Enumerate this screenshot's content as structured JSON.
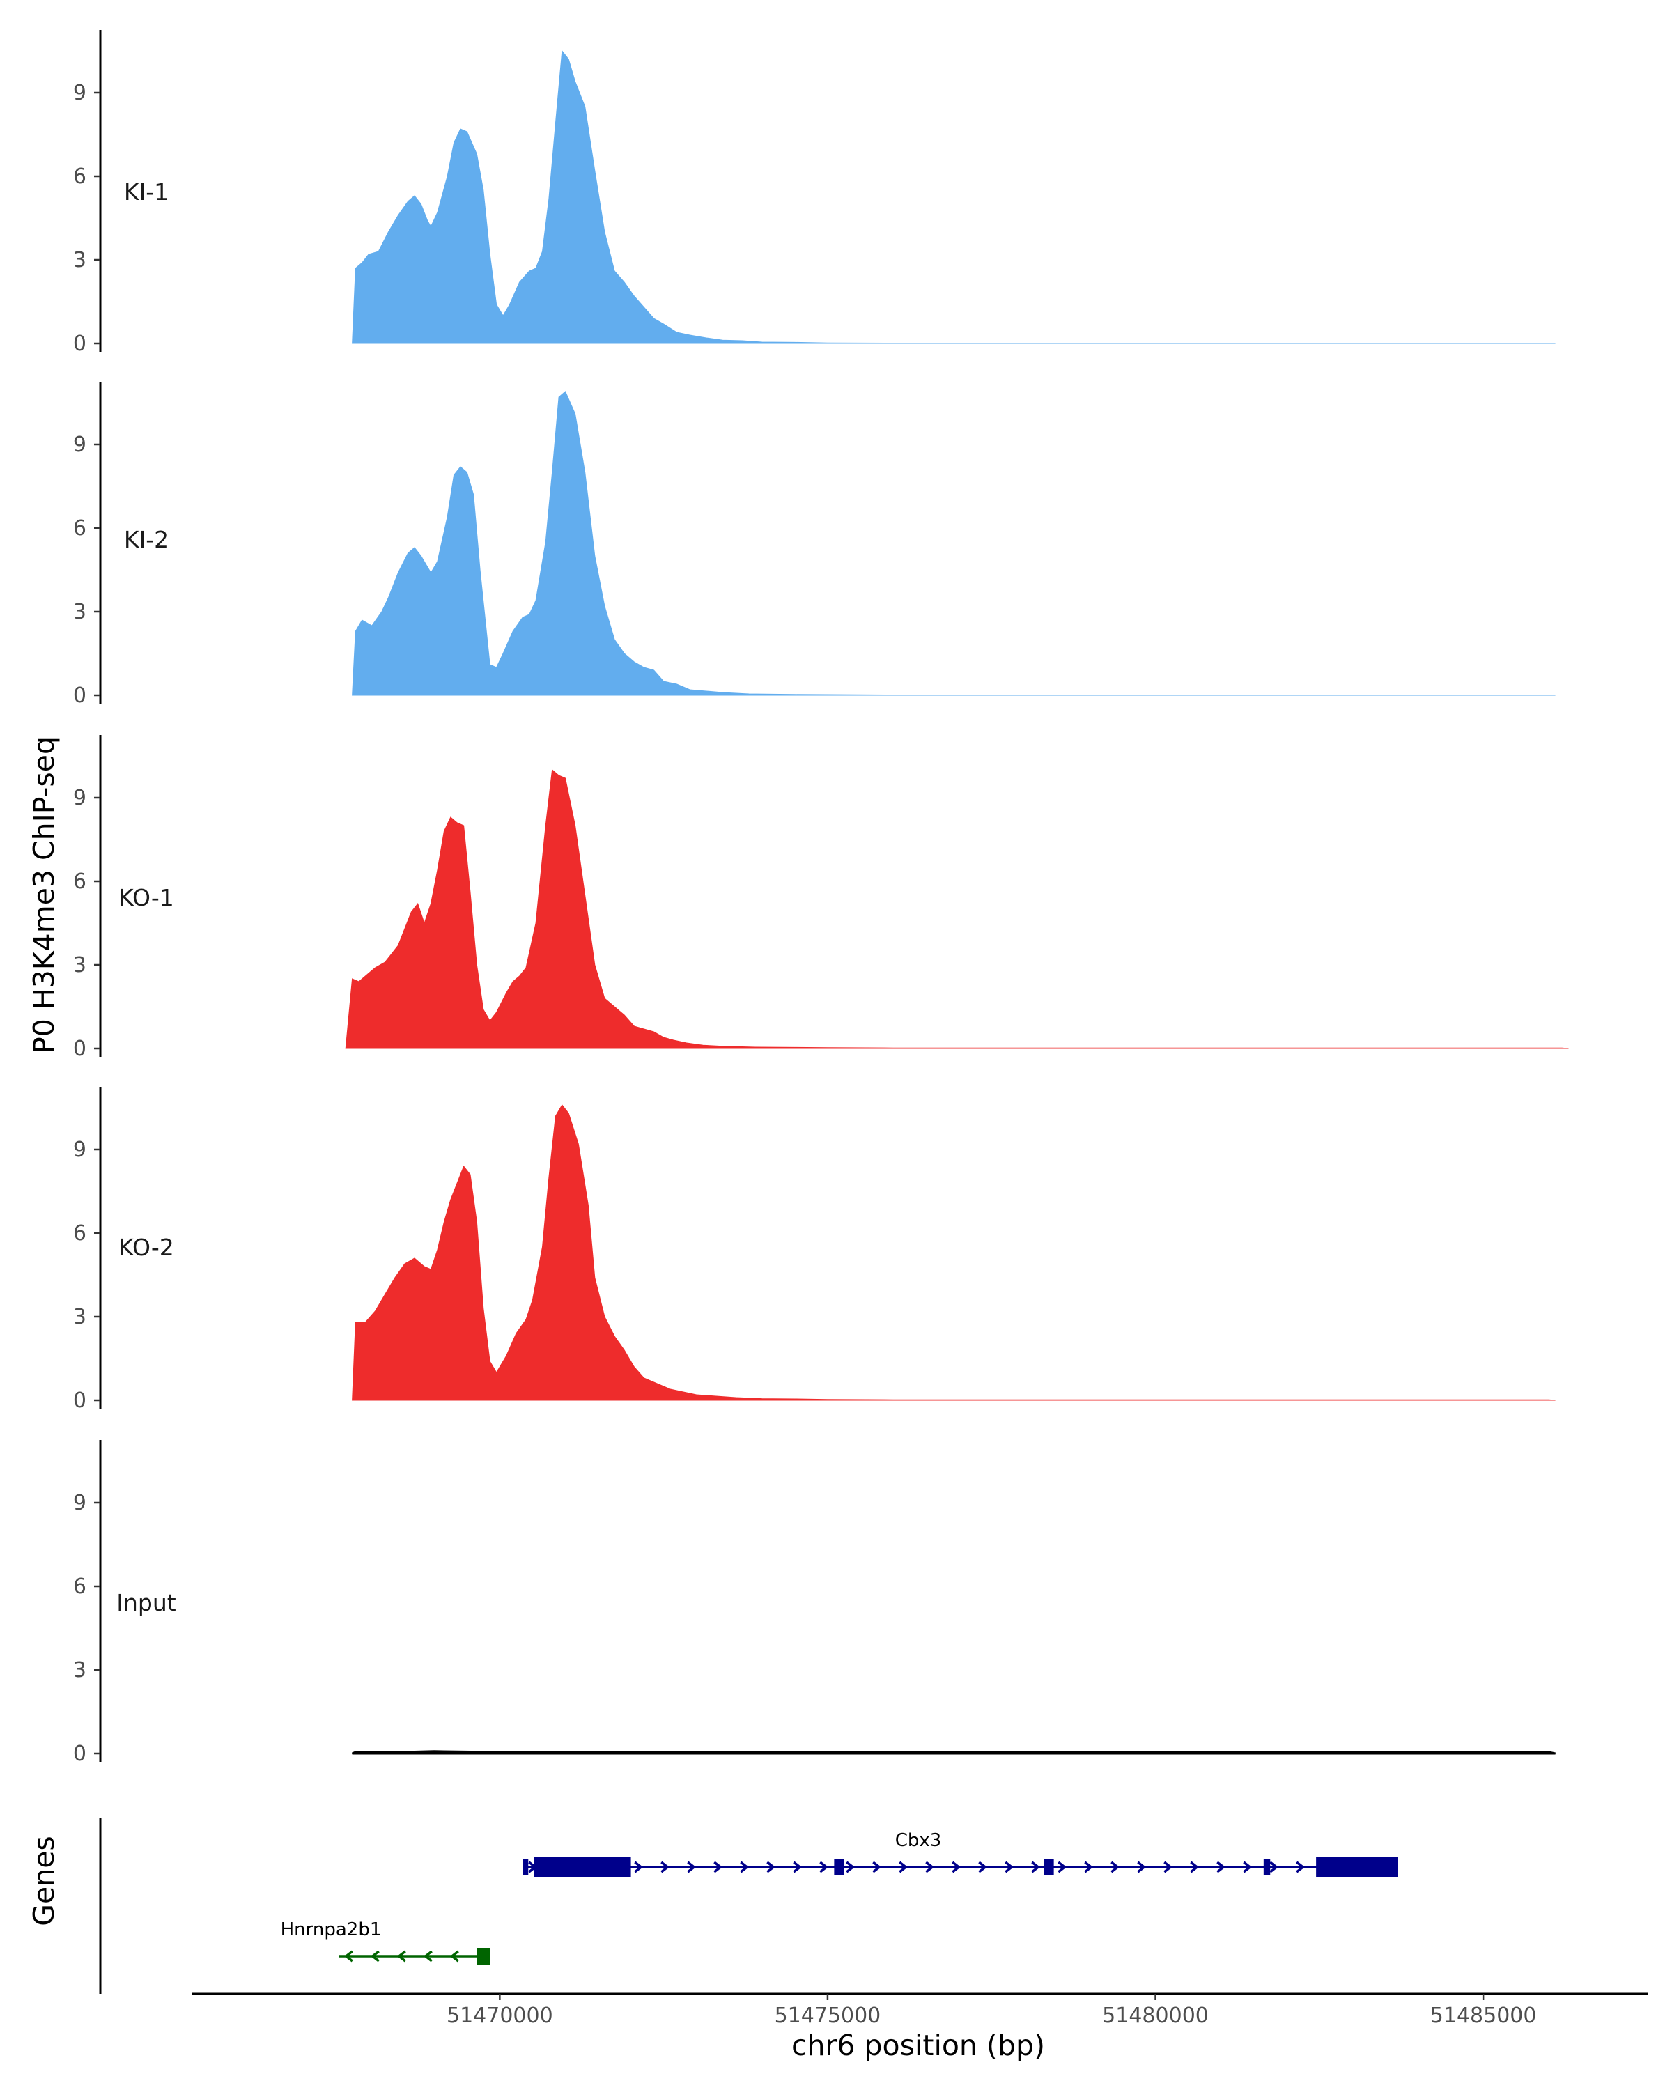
{
  "chart_data": {
    "type": "area",
    "ylabel": "P0 H3K4me3 ChIP-seq",
    "xlabel": "chr6 position (bp)",
    "genes_label": "Genes",
    "xlim": [
      51465300,
      51487400
    ],
    "x_ticks": [
      51470000,
      51475000,
      51480000,
      51485000
    ],
    "x_tick_labels": [
      "51470000",
      "51475000",
      "51480000",
      "51485000"
    ],
    "ylim": [
      0,
      11.5
    ],
    "y_ticks": [
      0,
      3,
      6,
      9
    ],
    "y_tick_labels": [
      "0",
      "3",
      "6",
      "9"
    ],
    "tracks": [
      {
        "name": "KI-1",
        "color": "#62adee",
        "points": [
          [
            51467750,
            0
          ],
          [
            51467800,
            2.7
          ],
          [
            51467900,
            2.9
          ],
          [
            51468000,
            3.2
          ],
          [
            51468150,
            3.3
          ],
          [
            51468300,
            4.0
          ],
          [
            51468450,
            4.6
          ],
          [
            51468600,
            5.1
          ],
          [
            51468700,
            5.3
          ],
          [
            51468800,
            5.0
          ],
          [
            51468900,
            4.4
          ],
          [
            51468950,
            4.2
          ],
          [
            51469050,
            4.7
          ],
          [
            51469200,
            6.0
          ],
          [
            51469300,
            7.2
          ],
          [
            51469400,
            7.7
          ],
          [
            51469500,
            7.6
          ],
          [
            51469650,
            6.8
          ],
          [
            51469750,
            5.5
          ],
          [
            51469850,
            3.2
          ],
          [
            51469950,
            1.4
          ],
          [
            51470050,
            1.0
          ],
          [
            51470150,
            1.4
          ],
          [
            51470300,
            2.2
          ],
          [
            51470450,
            2.6
          ],
          [
            51470550,
            2.7
          ],
          [
            51470650,
            3.3
          ],
          [
            51470750,
            5.2
          ],
          [
            51470850,
            7.9
          ],
          [
            51470950,
            10.5
          ],
          [
            51471050,
            10.2
          ],
          [
            51471150,
            9.4
          ],
          [
            51471300,
            8.5
          ],
          [
            51471450,
            6.2
          ],
          [
            51471600,
            4.0
          ],
          [
            51471750,
            2.6
          ],
          [
            51471900,
            2.2
          ],
          [
            51472050,
            1.7
          ],
          [
            51472200,
            1.3
          ],
          [
            51472350,
            0.9
          ],
          [
            51472500,
            0.7
          ],
          [
            51472700,
            0.4
          ],
          [
            51472900,
            0.3
          ],
          [
            51473150,
            0.2
          ],
          [
            51473400,
            0.12
          ],
          [
            51473700,
            0.1
          ],
          [
            51474000,
            0.05
          ],
          [
            51474500,
            0.04
          ],
          [
            51475000,
            0.02
          ],
          [
            51476000,
            0.01
          ],
          [
            51486000,
            0.01
          ],
          [
            51486100,
            0
          ]
        ]
      },
      {
        "name": "KI-2",
        "color": "#62adee",
        "points": [
          [
            51467750,
            0
          ],
          [
            51467800,
            2.3
          ],
          [
            51467900,
            2.7
          ],
          [
            51468050,
            2.5
          ],
          [
            51468200,
            3.0
          ],
          [
            51468300,
            3.5
          ],
          [
            51468450,
            4.4
          ],
          [
            51468600,
            5.1
          ],
          [
            51468700,
            5.3
          ],
          [
            51468800,
            5.0
          ],
          [
            51468950,
            4.4
          ],
          [
            51469050,
            4.8
          ],
          [
            51469200,
            6.4
          ],
          [
            51469300,
            7.9
          ],
          [
            51469400,
            8.2
          ],
          [
            51469500,
            8.0
          ],
          [
            51469600,
            7.2
          ],
          [
            51469700,
            4.5
          ],
          [
            51469850,
            1.1
          ],
          [
            51469950,
            1.0
          ],
          [
            51470050,
            1.5
          ],
          [
            51470200,
            2.3
          ],
          [
            51470350,
            2.8
          ],
          [
            51470450,
            2.9
          ],
          [
            51470550,
            3.4
          ],
          [
            51470700,
            5.5
          ],
          [
            51470800,
            8.0
          ],
          [
            51470900,
            10.7
          ],
          [
            51471000,
            10.9
          ],
          [
            51471150,
            10.1
          ],
          [
            51471300,
            8.0
          ],
          [
            51471450,
            5.0
          ],
          [
            51471600,
            3.2
          ],
          [
            51471750,
            2.0
          ],
          [
            51471900,
            1.5
          ],
          [
            51472050,
            1.2
          ],
          [
            51472200,
            1.0
          ],
          [
            51472350,
            0.9
          ],
          [
            51472500,
            0.5
          ],
          [
            51472700,
            0.4
          ],
          [
            51472900,
            0.2
          ],
          [
            51473150,
            0.15
          ],
          [
            51473400,
            0.1
          ],
          [
            51473800,
            0.05
          ],
          [
            51474500,
            0.03
          ],
          [
            51476000,
            0.01
          ],
          [
            51486000,
            0.01
          ],
          [
            51486100,
            0
          ]
        ]
      },
      {
        "name": "KO-1",
        "color": "#ee2c2c",
        "points": [
          [
            51467650,
            0
          ],
          [
            51467750,
            2.5
          ],
          [
            51467850,
            2.4
          ],
          [
            51467950,
            2.6
          ],
          [
            51468100,
            2.9
          ],
          [
            51468250,
            3.1
          ],
          [
            51468350,
            3.4
          ],
          [
            51468450,
            3.7
          ],
          [
            51468550,
            4.3
          ],
          [
            51468650,
            4.9
          ],
          [
            51468750,
            5.2
          ],
          [
            51468850,
            4.5
          ],
          [
            51468950,
            5.2
          ],
          [
            51469050,
            6.4
          ],
          [
            51469150,
            7.8
          ],
          [
            51469250,
            8.3
          ],
          [
            51469350,
            8.1
          ],
          [
            51469450,
            8.0
          ],
          [
            51469550,
            5.6
          ],
          [
            51469650,
            3.0
          ],
          [
            51469750,
            1.4
          ],
          [
            51469850,
            1.0
          ],
          [
            51469950,
            1.3
          ],
          [
            51470100,
            2.0
          ],
          [
            51470200,
            2.4
          ],
          [
            51470300,
            2.6
          ],
          [
            51470400,
            2.9
          ],
          [
            51470550,
            4.5
          ],
          [
            51470700,
            8.0
          ],
          [
            51470800,
            10.0
          ],
          [
            51470900,
            9.8
          ],
          [
            51471000,
            9.7
          ],
          [
            51471150,
            8.0
          ],
          [
            51471300,
            5.5
          ],
          [
            51471450,
            3.0
          ],
          [
            51471600,
            1.8
          ],
          [
            51471750,
            1.5
          ],
          [
            51471900,
            1.2
          ],
          [
            51472050,
            0.8
          ],
          [
            51472200,
            0.7
          ],
          [
            51472350,
            0.6
          ],
          [
            51472500,
            0.4
          ],
          [
            51472650,
            0.3
          ],
          [
            51472850,
            0.2
          ],
          [
            51473100,
            0.12
          ],
          [
            51473400,
            0.08
          ],
          [
            51473900,
            0.05
          ],
          [
            51474500,
            0.04
          ],
          [
            51475000,
            0.03
          ],
          [
            51476000,
            0.02
          ],
          [
            51486200,
            0.02
          ],
          [
            51486300,
            0
          ]
        ]
      },
      {
        "name": "KO-2",
        "color": "#ee2c2c",
        "points": [
          [
            51467750,
            0
          ],
          [
            51467800,
            2.8
          ],
          [
            51467950,
            2.8
          ],
          [
            51468100,
            3.2
          ],
          [
            51468250,
            3.8
          ],
          [
            51468400,
            4.4
          ],
          [
            51468550,
            4.9
          ],
          [
            51468700,
            5.1
          ],
          [
            51468850,
            4.8
          ],
          [
            51468950,
            4.7
          ],
          [
            51469050,
            5.4
          ],
          [
            51469150,
            6.4
          ],
          [
            51469250,
            7.2
          ],
          [
            51469350,
            7.8
          ],
          [
            51469450,
            8.4
          ],
          [
            51469550,
            8.1
          ],
          [
            51469650,
            6.4
          ],
          [
            51469750,
            3.3
          ],
          [
            51469850,
            1.4
          ],
          [
            51469950,
            1.0
          ],
          [
            51470100,
            1.6
          ],
          [
            51470250,
            2.4
          ],
          [
            51470400,
            2.9
          ],
          [
            51470500,
            3.6
          ],
          [
            51470650,
            5.5
          ],
          [
            51470750,
            8.0
          ],
          [
            51470850,
            10.2
          ],
          [
            51470950,
            10.6
          ],
          [
            51471050,
            10.3
          ],
          [
            51471200,
            9.2
          ],
          [
            51471350,
            7.0
          ],
          [
            51471450,
            4.4
          ],
          [
            51471600,
            3.0
          ],
          [
            51471750,
            2.3
          ],
          [
            51471900,
            1.8
          ],
          [
            51472050,
            1.2
          ],
          [
            51472200,
            0.8
          ],
          [
            51472400,
            0.6
          ],
          [
            51472600,
            0.4
          ],
          [
            51472800,
            0.3
          ],
          [
            51473000,
            0.2
          ],
          [
            51473300,
            0.15
          ],
          [
            51473600,
            0.1
          ],
          [
            51474000,
            0.06
          ],
          [
            51474500,
            0.05
          ],
          [
            51475000,
            0.03
          ],
          [
            51476000,
            0.02
          ],
          [
            51486000,
            0.02
          ],
          [
            51486100,
            0
          ]
        ]
      },
      {
        "name": "Input",
        "color": "#000000",
        "points": [
          [
            51467750,
            0
          ],
          [
            51467800,
            0.05
          ],
          [
            51468500,
            0.05
          ],
          [
            51469000,
            0.08
          ],
          [
            51470000,
            0.05
          ],
          [
            51472000,
            0.06
          ],
          [
            51475000,
            0.05
          ],
          [
            51478000,
            0.06
          ],
          [
            51481000,
            0.05
          ],
          [
            51484000,
            0.06
          ],
          [
            51486000,
            0.05
          ],
          [
            51486100,
            0
          ]
        ]
      }
    ],
    "genes": [
      {
        "name": "Cbx3",
        "strand": "+",
        "color": "#00008b",
        "start": 51470350,
        "end": 51483700,
        "exons": [
          [
            51470350,
            51470420,
            "small"
          ],
          [
            51470520,
            51472000,
            "large"
          ],
          [
            51475100,
            51475250,
            "medium"
          ],
          [
            51478300,
            51478450,
            "medium"
          ],
          [
            51481650,
            51481750,
            "medium"
          ],
          [
            51482450,
            51483700,
            "large"
          ]
        ]
      },
      {
        "name": "Hnrnpa2b1",
        "strand": "-",
        "color": "#006400",
        "start": 51467550,
        "end": 51469850,
        "exons": [
          [
            51469650,
            51469850,
            "medium"
          ]
        ]
      }
    ]
  }
}
